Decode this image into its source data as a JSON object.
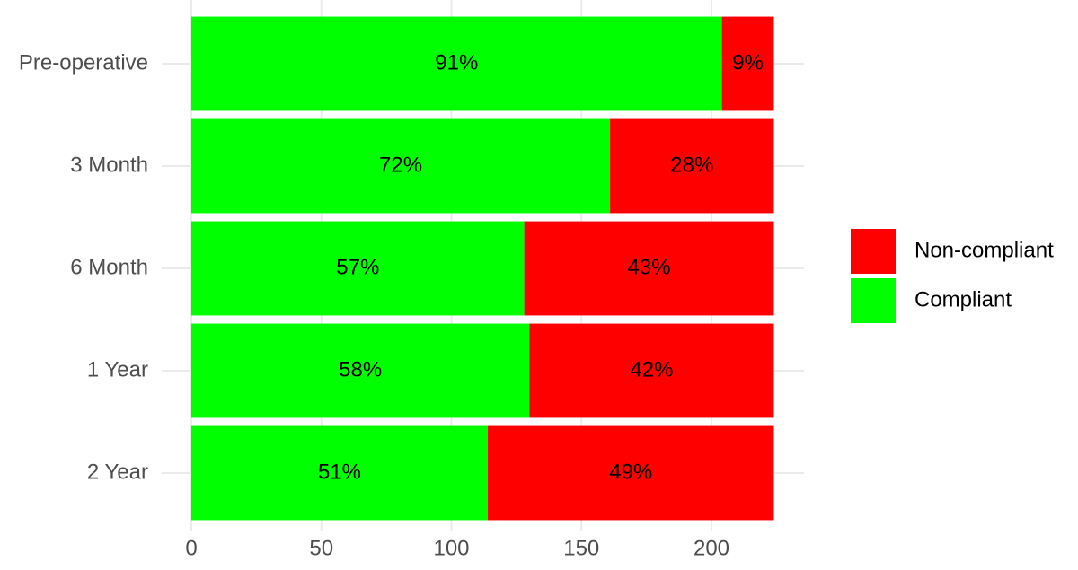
{
  "chart_data": {
    "type": "stacked-barh",
    "categories": [
      "Pre-operative",
      "3 Month",
      "6 Month",
      "1 Year",
      "2 Year"
    ],
    "series": [
      {
        "name": "Compliant",
        "color": "#00ff00",
        "values": [
          204,
          161,
          128,
          130,
          114
        ],
        "data_labels": [
          "91%",
          "72%",
          "57%",
          "58%",
          "51%"
        ]
      },
      {
        "name": "Non-compliant",
        "color": "#ff0000",
        "values": [
          20,
          63,
          96,
          94,
          110
        ],
        "data_labels": [
          "9%",
          "28%",
          "43%",
          "42%",
          "49%"
        ]
      }
    ],
    "xlim": [
      0,
      224
    ],
    "xticks": [
      0,
      50,
      100,
      150,
      200
    ],
    "grid": true,
    "legend": "right"
  }
}
